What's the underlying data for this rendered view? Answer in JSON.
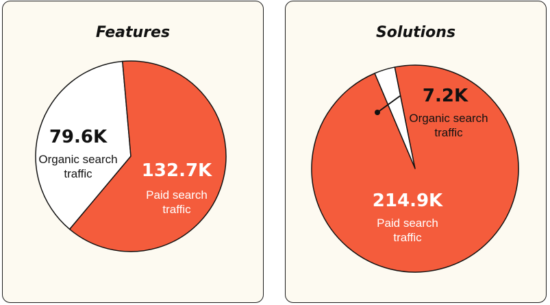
{
  "colors": {
    "paid": "#f45c3c",
    "organic": "#ffffff",
    "outline": "#111111",
    "dark_text": "#111111",
    "light_text": "#ffffff"
  },
  "chart_data": [
    {
      "type": "pie",
      "title": "Features",
      "slices": [
        {
          "value": "79.6K",
          "amount": 79.6,
          "label_line1": "Organic search",
          "label_line2": "traffic",
          "color": "#ffffff"
        },
        {
          "value": "132.7K",
          "amount": 132.7,
          "label_line1": "Paid search",
          "label_line2": "traffic",
          "color": "#f45c3c"
        }
      ]
    },
    {
      "type": "pie",
      "title": "Solutions",
      "slices": [
        {
          "value": "7.2K",
          "amount": 7.2,
          "label_line1": "Organic search",
          "label_line2": "traffic",
          "color": "#ffffff"
        },
        {
          "value": "214.9K",
          "amount": 214.9,
          "label_line1": "Paid search",
          "label_line2": "traffic",
          "color": "#f45c3c"
        }
      ]
    }
  ]
}
